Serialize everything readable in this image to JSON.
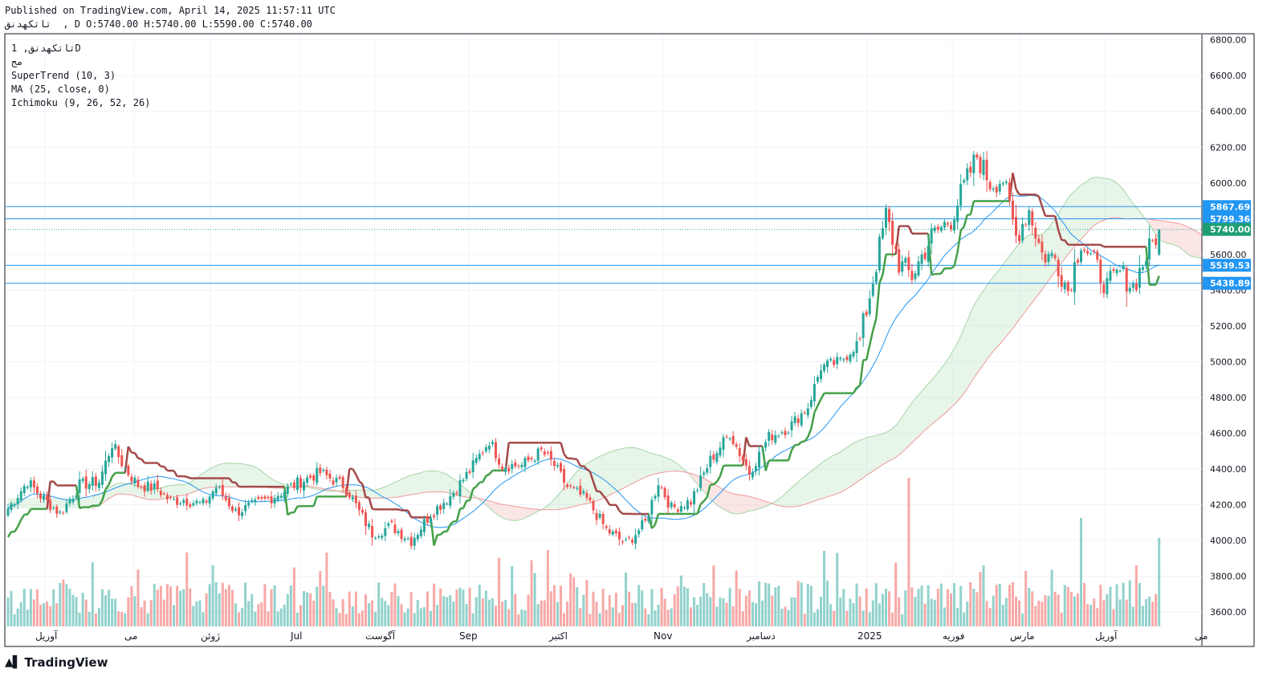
{
  "header": {
    "published": "Published on TradingView.com, April 14, 2025 11:57:11 UTC",
    "symbol_line": "تاتکهدنق  , D O:5740.00 H:5740.00 L:5590.00 C:5740.00"
  },
  "legend": {
    "symbol": "تاتکهدنق, 1D",
    "exchange": "مج",
    "supertrend": "SuperTrend (10, 3)",
    "ma": "MA (25, close, 0)",
    "ichimoku": "Ichimoku (9, 26, 52, 26)"
  },
  "footer": {
    "brand": "TradingView",
    "logo_icon": "tradingview-logo-icon"
  },
  "colors": {
    "up": "#26a69a",
    "down": "#ef5350",
    "supertrend_up": "#43a047",
    "supertrend_down": "#a34848",
    "ma": "#2196f3",
    "cloud_up": "#a5d6a7",
    "cloud_down": "#ef9a9a",
    "line": "#2196f3"
  },
  "chart_data": {
    "type": "candlestick",
    "y_axis": {
      "min": 3520,
      "max": 6830,
      "ticks": [
        3600,
        3800,
        4000,
        4200,
        4400,
        4600,
        4800,
        5000,
        5200,
        5400,
        5600,
        5800,
        6000,
        6200,
        6400,
        6600,
        6800
      ],
      "tick_labels": [
        "3600.00",
        "3800.00",
        "4000.00",
        "4200.00",
        "4400.00",
        "4600.00",
        "4800.00",
        "5000.00",
        "5200.00",
        "5400.00",
        "5600.00",
        "5800.00",
        "6000.00",
        "6200.00",
        "6400.00",
        "6600.00",
        "6800.00"
      ]
    },
    "x_axis_labels": [
      "آوریل",
      "می",
      "ژوئن",
      "Jul",
      "آگوست",
      "Sep",
      "اکتبر",
      "Nov",
      "دسامبر",
      "2025",
      "فوریه",
      "مارس",
      "آوریل",
      "می"
    ],
    "horizontal_lines": [
      5867.69,
      5799.36,
      5539.53,
      5438.89
    ],
    "last_price": 5740.0,
    "price_labels": [
      "5867.69",
      "5799.36",
      "5740.00",
      "5539.53",
      "5438.89"
    ],
    "close_anchors": [
      [
        0,
        4180
      ],
      [
        6,
        4330
      ],
      [
        10,
        4250
      ],
      [
        16,
        4150
      ],
      [
        22,
        4310
      ],
      [
        28,
        4330
      ],
      [
        32,
        4540
      ],
      [
        36,
        4400
      ],
      [
        40,
        4310
      ],
      [
        46,
        4290
      ],
      [
        50,
        4220
      ],
      [
        54,
        4230
      ],
      [
        60,
        4200
      ],
      [
        64,
        4300
      ],
      [
        70,
        4160
      ],
      [
        76,
        4200
      ],
      [
        82,
        4250
      ],
      [
        90,
        4330
      ],
      [
        96,
        4380
      ],
      [
        104,
        4300
      ],
      [
        108,
        4160
      ],
      [
        112,
        4040
      ],
      [
        118,
        4080
      ],
      [
        124,
        4000
      ],
      [
        130,
        4150
      ],
      [
        136,
        4250
      ],
      [
        142,
        4390
      ],
      [
        148,
        4560
      ],
      [
        152,
        4420
      ],
      [
        158,
        4420
      ],
      [
        164,
        4500
      ],
      [
        168,
        4420
      ],
      [
        172,
        4300
      ],
      [
        178,
        4230
      ],
      [
        184,
        4060
      ],
      [
        190,
        3980
      ],
      [
        196,
        4100
      ],
      [
        200,
        4330
      ],
      [
        204,
        4180
      ],
      [
        210,
        4220
      ],
      [
        216,
        4450
      ],
      [
        222,
        4600
      ],
      [
        228,
        4380
      ],
      [
        234,
        4580
      ],
      [
        240,
        4630
      ],
      [
        246,
        4750
      ],
      [
        250,
        4970
      ],
      [
        256,
        5000
      ],
      [
        262,
        5120
      ],
      [
        266,
        5460
      ],
      [
        270,
        5820
      ],
      [
        274,
        5550
      ],
      [
        278,
        5480
      ],
      [
        284,
        5700
      ],
      [
        290,
        5800
      ],
      [
        294,
        5980
      ],
      [
        298,
        6150
      ],
      [
        302,
        6000
      ],
      [
        306,
        6020
      ],
      [
        310,
        5700
      ],
      [
        314,
        5850
      ],
      [
        318,
        5600
      ],
      [
        322,
        5580
      ],
      [
        326,
        5400
      ],
      [
        330,
        5680
      ],
      [
        334,
        5550
      ],
      [
        338,
        5420
      ],
      [
        342,
        5500
      ],
      [
        346,
        5420
      ],
      [
        350,
        5590
      ],
      [
        354,
        5740
      ]
    ],
    "volume_max_bar_value": 1
  }
}
